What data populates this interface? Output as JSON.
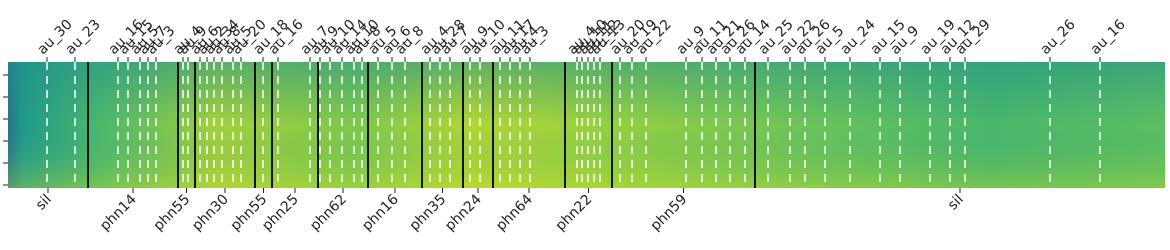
{
  "chart_data": {
    "type": "spectrogram",
    "xlim": [
      0,
      1157
    ],
    "segments": {
      "boundaries": [
        0,
        80,
        170,
        187,
        247,
        264,
        310,
        360,
        414,
        455,
        485,
        557,
        604,
        747,
        1157
      ],
      "labels": [
        "sil",
        "phn14",
        "phn55",
        "phn30",
        "phn55",
        "phn25",
        "phn62",
        "phn16",
        "phn35",
        "phn24",
        "phn64",
        "phn22",
        "phn59",
        "sil"
      ]
    },
    "markers": {
      "x": [
        39,
        67,
        110,
        120,
        132,
        140,
        148,
        175,
        180,
        192,
        199,
        206,
        214,
        225,
        233,
        255,
        270,
        302,
        312,
        322,
        334,
        346,
        354,
        370,
        384,
        397,
        422,
        432,
        442,
        462,
        472,
        492,
        502,
        512,
        522,
        569,
        574,
        580,
        586,
        592,
        612,
        624,
        638,
        678,
        694,
        708,
        722,
        737,
        760,
        782,
        797,
        817,
        842,
        872,
        892,
        922,
        942,
        957,
        1042,
        1092
      ],
      "labels": [
        "au_30",
        "au_23",
        "au_16",
        "au_15",
        "au_5",
        "au_7",
        "au_3",
        "au_4",
        "au_9",
        "au_6",
        "au_2",
        "au_34",
        "au_8",
        "au_5",
        "au_20",
        "au_18",
        "au_16",
        "au_7",
        "au_9",
        "au_10",
        "au_14",
        "au_10",
        "au_8",
        "au_5",
        "au_6",
        "au_8",
        "au_4",
        "au_28",
        "au_7",
        "au_9",
        "au_10",
        "au_11",
        "au_17",
        "au_4",
        "au_3",
        "au_4",
        "au_10",
        "au_11",
        "au_12",
        "au_13",
        "au_20",
        "au_19",
        "au_22",
        "au_9",
        "au_11",
        "au_21",
        "au_26",
        "au_14",
        "au_25",
        "au_22",
        "au_26",
        "au_5",
        "au_24",
        "au_15",
        "au_9",
        "au_19",
        "au_12",
        "au_29",
        "au_26",
        "au_16"
      ]
    }
  }
}
